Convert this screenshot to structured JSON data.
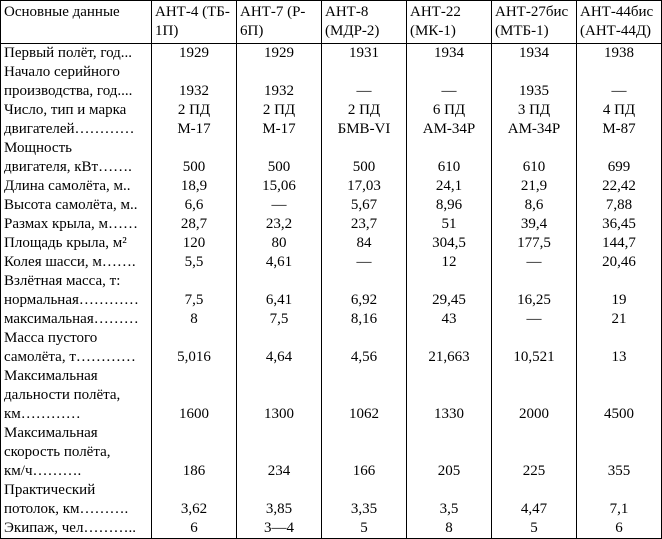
{
  "table": {
    "header": {
      "label": [
        "Основные данные"
      ],
      "columns": [
        [
          "АНТ-4 (ТБ-",
          "1П)"
        ],
        [
          "АНТ-7 (Р-",
          "6П)"
        ],
        [
          "АНТ-8",
          "(МДР-2)"
        ],
        [
          "АНТ-22",
          "(МК-1)"
        ],
        [
          "АНТ-27бис",
          "(МТБ-1)"
        ],
        [
          "АНТ-44бис",
          "(АНТ-44Д)"
        ]
      ]
    },
    "rows": [
      {
        "label": [
          "Первый полёт, год..."
        ],
        "values": [
          [
            "1929"
          ],
          [
            "1929"
          ],
          [
            "1931"
          ],
          [
            "1934"
          ],
          [
            "1934"
          ],
          [
            "1938"
          ]
        ]
      },
      {
        "label": [
          "Начало серийного",
          "производства, год...."
        ],
        "values": [
          [
            "1932"
          ],
          [
            "1932"
          ],
          [
            "—"
          ],
          [
            "—"
          ],
          [
            "1935"
          ],
          [
            "—"
          ]
        ]
      },
      {
        "label": [
          "Число, тип и марка",
          "двигателей…………"
        ],
        "values": [
          [
            "2 ПД",
            "М-17"
          ],
          [
            "2 ПД",
            "М-17"
          ],
          [
            "2 ПД",
            "БМВ-VI"
          ],
          [
            "6 ПД",
            "АМ-34Р"
          ],
          [
            "3 ПД",
            "АМ-34Р"
          ],
          [
            "4 ПД",
            "М-87"
          ]
        ]
      },
      {
        "label": [
          "Мощность",
          "двигателя, кВт……."
        ],
        "values": [
          [
            "500"
          ],
          [
            "500"
          ],
          [
            "500"
          ],
          [
            "610"
          ],
          [
            "610"
          ],
          [
            "699"
          ]
        ]
      },
      {
        "label": [
          "Длина самолёта, м.."
        ],
        "values": [
          [
            "18,9"
          ],
          [
            "15,06"
          ],
          [
            "17,03"
          ],
          [
            "24,1"
          ],
          [
            "21,9"
          ],
          [
            "22,42"
          ]
        ]
      },
      {
        "label": [
          "Высота самолёта, м.."
        ],
        "values": [
          [
            "6,6"
          ],
          [
            "—"
          ],
          [
            "5,67"
          ],
          [
            "8,96"
          ],
          [
            "8,6"
          ],
          [
            "7,88"
          ]
        ]
      },
      {
        "label": [
          "Размах крыла, м……"
        ],
        "values": [
          [
            "28,7"
          ],
          [
            "23,2"
          ],
          [
            "23,7"
          ],
          [
            "51"
          ],
          [
            "39,4"
          ],
          [
            "36,45"
          ]
        ]
      },
      {
        "label": [
          "Площадь крыла, м²"
        ],
        "values": [
          [
            "120"
          ],
          [
            "80"
          ],
          [
            "84"
          ],
          [
            "304,5"
          ],
          [
            "177,5"
          ],
          [
            "144,7"
          ]
        ]
      },
      {
        "label": [
          "Колея шасси, м……."
        ],
        "values": [
          [
            "5,5"
          ],
          [
            "4,61"
          ],
          [
            "—"
          ],
          [
            "12"
          ],
          [
            "—"
          ],
          [
            "20,46"
          ]
        ]
      },
      {
        "label": [
          "Взлётная масса, т:",
          "нормальная…………"
        ],
        "values": [
          [
            "7,5"
          ],
          [
            "6,41"
          ],
          [
            "6,92"
          ],
          [
            "29,45"
          ],
          [
            "16,25"
          ],
          [
            "19"
          ]
        ]
      },
      {
        "label": [
          "максимальная………"
        ],
        "values": [
          [
            "8"
          ],
          [
            "7,5"
          ],
          [
            "8,16"
          ],
          [
            "43"
          ],
          [
            "—"
          ],
          [
            "21"
          ]
        ]
      },
      {
        "label": [
          "Масса пустого",
          "самолёта, т…………"
        ],
        "values": [
          [
            "5,016"
          ],
          [
            "4,64"
          ],
          [
            "4,56"
          ],
          [
            "21,663"
          ],
          [
            "10,521"
          ],
          [
            "13"
          ]
        ]
      },
      {
        "label": [
          "Максимальная",
          "дальности полёта,",
          "км…………"
        ],
        "values": [
          [
            "1600"
          ],
          [
            "1300"
          ],
          [
            "1062"
          ],
          [
            "1330"
          ],
          [
            "2000"
          ],
          [
            "4500"
          ]
        ]
      },
      {
        "label": [
          "Максимальная",
          "скорость полёта,",
          "км/ч………."
        ],
        "values": [
          [
            "186"
          ],
          [
            "234"
          ],
          [
            "166"
          ],
          [
            "205"
          ],
          [
            "225"
          ],
          [
            "355"
          ]
        ]
      },
      {
        "label": [
          "Практический",
          "потолок, км………."
        ],
        "values": [
          [
            "3,62"
          ],
          [
            "3,85"
          ],
          [
            "3,35"
          ],
          [
            "3,5"
          ],
          [
            "4,47"
          ],
          [
            "7,1"
          ]
        ]
      },
      {
        "label": [
          "Экипаж, чел……….."
        ],
        "values": [
          [
            "6"
          ],
          [
            "3—4"
          ],
          [
            "5"
          ],
          [
            "8"
          ],
          [
            "5"
          ],
          [
            "6"
          ]
        ]
      }
    ]
  }
}
